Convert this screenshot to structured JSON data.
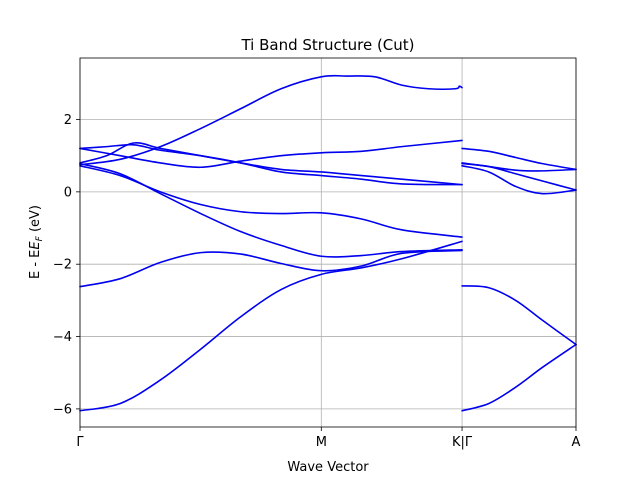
{
  "chart_data": {
    "type": "line",
    "title": "Ti Band Structure (Cut)",
    "xlabel": "Wave Vector",
    "ylabel_prefix": "E - E",
    "ylabel_sub": "F",
    "ylabel_suffix": " (eV)",
    "xlim": [
      0,
      3.7
    ],
    "ylim": [
      -6.5,
      3.7
    ],
    "grid": true,
    "line_color": "#0000ee",
    "x_ticks": [
      {
        "value": 0,
        "label": "Γ"
      },
      {
        "value": 1.8,
        "label": "M"
      },
      {
        "value": 2.85,
        "label": "K|Γ"
      },
      {
        "value": 3.7,
        "label": "A"
      }
    ],
    "y_ticks": [
      {
        "value": -6,
        "label": "−6"
      },
      {
        "value": -4,
        "label": "−4"
      },
      {
        "value": -2,
        "label": "−2"
      },
      {
        "value": 0,
        "label": "0"
      },
      {
        "value": 2,
        "label": "2"
      }
    ],
    "segments": [
      {
        "name": "Γ-M-K",
        "bands": [
          {
            "x": [
              0,
              0.3,
              0.6,
              0.9,
              1.2,
              1.5,
              1.8,
              2.1,
              2.4,
              2.85
            ],
            "y": [
              -6.05,
              -5.85,
              -5.2,
              -4.35,
              -3.45,
              -2.7,
              -2.28,
              -2.1,
              -1.85,
              -1.37
            ]
          },
          {
            "x": [
              0,
              0.3,
              0.6,
              0.9,
              1.2,
              1.5,
              1.8,
              2.1,
              2.4,
              2.85
            ],
            "y": [
              -2.62,
              -2.4,
              -1.95,
              -1.68,
              -1.72,
              -1.98,
              -2.18,
              -2.05,
              -1.7,
              -1.62
            ]
          },
          {
            "x": [
              0,
              0.3,
              0.6,
              0.9,
              1.2,
              1.5,
              1.8,
              2.1,
              2.4,
              2.85
            ],
            "y": [
              0.78,
              0.5,
              -0.05,
              -0.6,
              -1.1,
              -1.48,
              -1.78,
              -1.76,
              -1.65,
              -1.6
            ]
          },
          {
            "x": [
              0,
              0.3,
              0.6,
              0.9,
              1.2,
              1.5,
              1.8,
              2.1,
              2.4,
              2.85
            ],
            "y": [
              0.72,
              0.45,
              0.0,
              -0.35,
              -0.55,
              -0.6,
              -0.58,
              -0.75,
              -1.05,
              -1.25
            ]
          },
          {
            "x": [
              0,
              0.3,
              0.6,
              0.9,
              1.2,
              1.5,
              1.8,
              2.1,
              2.4,
              2.85
            ],
            "y": [
              1.2,
              1.0,
              0.8,
              0.68,
              0.85,
              1.0,
              1.08,
              1.12,
              1.25,
              1.42
            ]
          },
          {
            "x": [
              0,
              0.2,
              0.4,
              0.6,
              0.9,
              1.2,
              1.5,
              1.8,
              2.1,
              2.4,
              2.85
            ],
            "y": [
              0.8,
              1.0,
              1.35,
              1.2,
              1.0,
              0.8,
              0.62,
              0.55,
              0.45,
              0.35,
              0.2
            ]
          },
          {
            "x": [
              0,
              0.2,
              0.4,
              0.6,
              0.9,
              1.2,
              1.5,
              1.8,
              2.1,
              2.4,
              2.85
            ],
            "y": [
              1.2,
              1.25,
              1.3,
              1.15,
              1.0,
              0.8,
              0.55,
              0.45,
              0.35,
              0.22,
              0.2
            ]
          },
          {
            "x": [
              0,
              0.3,
              0.6,
              0.9,
              1.2,
              1.5,
              1.8,
              2.0,
              2.2,
              2.4,
              2.6,
              2.8,
              2.83,
              2.85
            ],
            "y": [
              0.75,
              0.9,
              1.25,
              1.75,
              2.3,
              2.85,
              3.18,
              3.2,
              3.18,
              2.95,
              2.85,
              2.85,
              2.92,
              2.88
            ]
          }
        ]
      },
      {
        "name": "Γ-A",
        "bands": [
          {
            "x": [
              2.85,
              3.05,
              3.25,
              3.45,
              3.7
            ],
            "y": [
              -6.05,
              -5.85,
              -5.4,
              -4.85,
              -4.22
            ]
          },
          {
            "x": [
              2.85,
              3.05,
              3.25,
              3.45,
              3.7
            ],
            "y": [
              -2.6,
              -2.65,
              -3.0,
              -3.55,
              -4.22
            ]
          },
          {
            "x": [
              2.85,
              3.05,
              3.25,
              3.45,
              3.7
            ],
            "y": [
              0.72,
              0.55,
              0.15,
              -0.05,
              0.05
            ]
          },
          {
            "x": [
              2.85,
              3.05,
              3.25,
              3.45,
              3.7
            ],
            "y": [
              0.78,
              0.7,
              0.5,
              0.3,
              0.05
            ]
          },
          {
            "x": [
              2.85,
              3.05,
              3.25,
              3.45,
              3.7
            ],
            "y": [
              0.8,
              0.7,
              0.6,
              0.58,
              0.62
            ]
          },
          {
            "x": [
              2.85,
              3.05,
              3.25,
              3.45,
              3.7
            ],
            "y": [
              1.2,
              1.12,
              0.95,
              0.78,
              0.62
            ]
          }
        ]
      }
    ]
  }
}
